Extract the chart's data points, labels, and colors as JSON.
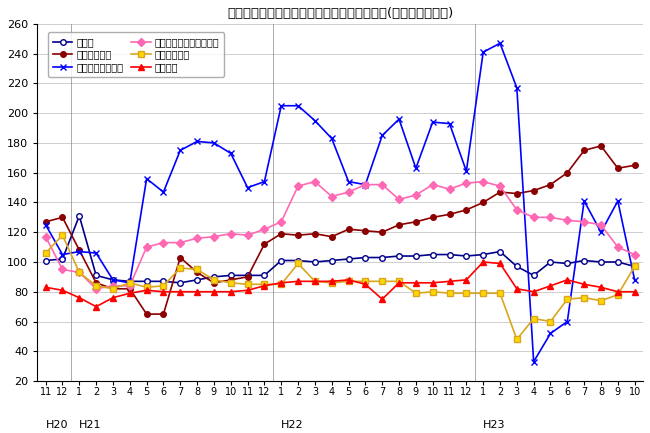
{
  "title": "三重県鉱工業生産及び主要業種別指数の推移(季節調整済指数)",
  "ylim": [
    20,
    260
  ],
  "yticks": [
    20,
    40,
    60,
    80,
    100,
    120,
    140,
    160,
    180,
    200,
    220,
    240,
    260
  ],
  "x_labels": [
    "11",
    "12",
    "1",
    "2",
    "3",
    "4",
    "5",
    "6",
    "7",
    "8",
    "9",
    "10",
    "11",
    "12",
    "1",
    "2",
    "3",
    "4",
    "5",
    "6",
    "7",
    "8",
    "9",
    "10",
    "11",
    "12",
    "1",
    "2",
    "3",
    "4",
    "5",
    "6",
    "7",
    "8",
    "9",
    "10"
  ],
  "year_labels": [
    {
      "label": "H20",
      "index": 0
    },
    {
      "label": "H21",
      "index": 2
    },
    {
      "label": "H22",
      "index": 14
    },
    {
      "label": "H23",
      "index": 26
    }
  ],
  "separators": [
    1.5,
    13.5,
    25.5
  ],
  "series": [
    {
      "key": "koukou",
      "label": "鉱工業",
      "color": "#00008B",
      "marker": "o",
      "marker_fill": "white",
      "marker_edge": "#00008B",
      "markersize": 4,
      "linewidth": 1.2,
      "values": [
        101,
        102,
        131,
        91,
        88,
        87,
        87,
        87,
        86,
        88,
        90,
        91,
        91,
        91,
        101,
        101,
        100,
        101,
        102,
        103,
        103,
        104,
        104,
        105,
        105,
        104,
        105,
        107,
        97,
        91,
        100,
        99,
        101,
        100,
        100,
        97
      ]
    },
    {
      "key": "ippan",
      "label": "一般機械工業",
      "color": "#8B0000",
      "marker": "o",
      "marker_fill": "#8B0000",
      "marker_edge": "#8B0000",
      "markersize": 4,
      "linewidth": 1.2,
      "values": [
        127,
        130,
        108,
        86,
        82,
        82,
        65,
        65,
        103,
        93,
        86,
        88,
        90,
        112,
        119,
        118,
        119,
        117,
        122,
        121,
        120,
        125,
        127,
        130,
        132,
        135,
        140,
        147,
        146,
        148,
        152,
        160,
        175,
        178,
        163,
        165
      ]
    },
    {
      "key": "joho",
      "label": "情報通信機械工業",
      "color": "#0000FF",
      "marker": "x",
      "marker_fill": "#0000FF",
      "marker_edge": "#0000FF",
      "markersize": 5,
      "linewidth": 1.2,
      "values": [
        125,
        105,
        107,
        106,
        88,
        86,
        156,
        147,
        175,
        181,
        180,
        173,
        150,
        154,
        205,
        205,
        195,
        183,
        154,
        152,
        185,
        196,
        163,
        194,
        193,
        161,
        241,
        247,
        217,
        33,
        52,
        60,
        141,
        120,
        141,
        88
      ]
    },
    {
      "key": "denshi",
      "label": "電子部品・デバイス工業",
      "color": "#FF69B4",
      "marker": "D",
      "marker_fill": "#FF69B4",
      "marker_edge": "#FF69B4",
      "markersize": 4,
      "linewidth": 1.2,
      "values": [
        117,
        95,
        93,
        82,
        84,
        84,
        110,
        113,
        113,
        116,
        117,
        119,
        118,
        122,
        127,
        151,
        154,
        144,
        147,
        152,
        152,
        142,
        145,
        152,
        149,
        153,
        154,
        151,
        135,
        130,
        130,
        128,
        127,
        125,
        110,
        105
      ]
    },
    {
      "key": "yusou",
      "label": "輸送機械工業",
      "color": "#DAA520",
      "marker": "s",
      "marker_fill": "#FFD700",
      "marker_edge": "#DAA520",
      "markersize": 4,
      "linewidth": 1.2,
      "values": [
        106,
        118,
        93,
        84,
        82,
        86,
        83,
        84,
        96,
        95,
        88,
        86,
        85,
        85,
        85,
        99,
        87,
        86,
        87,
        87,
        87,
        87,
        79,
        80,
        79,
        79,
        79,
        79,
        48,
        62,
        60,
        75,
        76,
        74,
        78,
        97
      ]
    },
    {
      "key": "kagaku",
      "label": "化学工業",
      "color": "#FF0000",
      "marker": "^",
      "marker_fill": "#FF0000",
      "marker_edge": "#FF0000",
      "markersize": 4,
      "linewidth": 1.2,
      "values": [
        83,
        81,
        76,
        70,
        76,
        79,
        81,
        80,
        80,
        80,
        80,
        80,
        81,
        84,
        86,
        87,
        87,
        87,
        88,
        85,
        75,
        86,
        86,
        86,
        87,
        88,
        100,
        99,
        82,
        80,
        84,
        88,
        85,
        83,
        80,
        80
      ]
    }
  ]
}
